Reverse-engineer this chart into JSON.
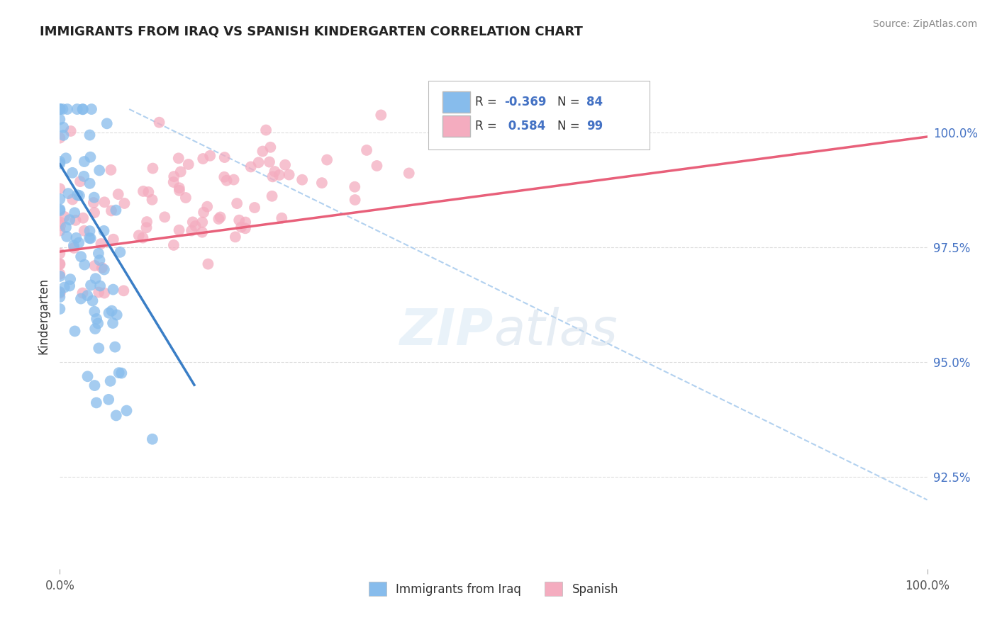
{
  "title": "IMMIGRANTS FROM IRAQ VS SPANISH KINDERGARTEN CORRELATION CHART",
  "source": "Source: ZipAtlas.com",
  "ylabel": "Kindergarten",
  "right_ytick_labels": [
    "100.0%",
    "97.5%",
    "95.0%",
    "92.5%"
  ],
  "right_ytick_values": [
    1.0,
    0.975,
    0.95,
    0.925
  ],
  "legend_blue_label": "Immigrants from Iraq",
  "legend_pink_label": "Spanish",
  "blue_color": "#87BCEC",
  "pink_color": "#F4ACBF",
  "blue_line_color": "#3A7EC6",
  "pink_line_color": "#E8607A",
  "diagonal_color": "#AACCEE",
  "background_color": "#FFFFFF",
  "xmin": 0.0,
  "xmax": 1.0,
  "ymin": 0.905,
  "ymax": 1.015,
  "seed": 42,
  "n_blue": 84,
  "n_pink": 99,
  "figwidth": 14.06,
  "figheight": 8.92,
  "dpi": 100
}
